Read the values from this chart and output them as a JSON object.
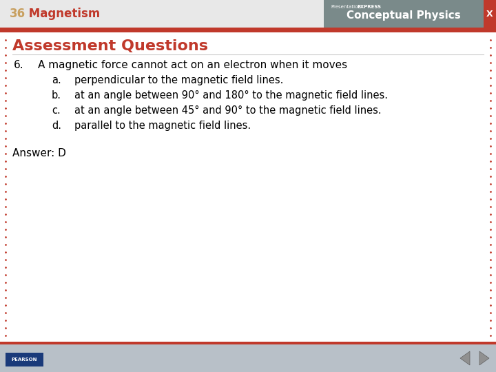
{
  "header_bg_color": "#c0392b",
  "header_text_number": "36",
  "header_text_number_color": "#c8a060",
  "header_text_title": " Magnetism",
  "header_text_title_color": "#c0392b",
  "conceptual_physics_bg": "#7a8a8a",
  "conceptual_physics_text": "Conceptual Physics",
  "presentation_text1": "Presentation",
  "presentation_text2": "EXPRESS",
  "main_bg_color": "#ffffff",
  "border_dot_color": "#c0392b",
  "section_title": "Assessment Questions",
  "section_title_color": "#c0392b",
  "question_number": "6.",
  "question_text": "A magnetic force cannot act on an electron when it moves",
  "question_color": "#000000",
  "options": [
    {
      "label": "a.",
      "text": "perpendicular to the magnetic field lines."
    },
    {
      "label": "b.",
      "text": "at an angle between 90° and 180° to the magnetic field lines."
    },
    {
      "label": "c.",
      "text": "at an angle between 45° and 90° to the magnetic field lines."
    },
    {
      "label": "d.",
      "text": "parallel to the magnetic field lines."
    }
  ],
  "answer_text": "Answer: D",
  "answer_color": "#000000",
  "footer_bg_color": "#b8c0c8",
  "x_button_color": "#c0392b",
  "red_bar_color": "#c0392b",
  "header_white_bg": "#e8e8e8"
}
